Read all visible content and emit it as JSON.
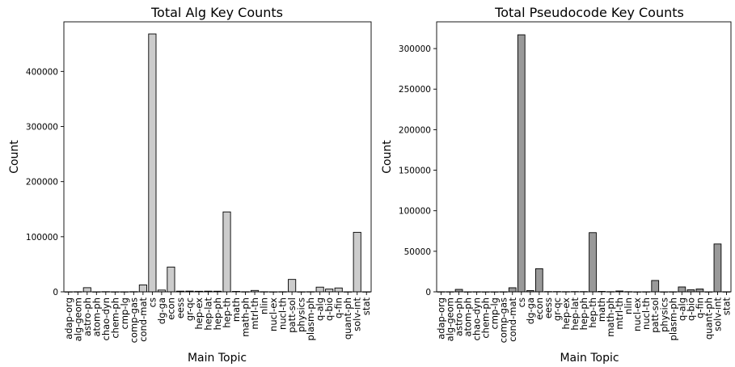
{
  "chart_data": [
    {
      "type": "bar",
      "title": "Total Alg Key Counts",
      "xlabel": "Main Topic",
      "ylabel": "Count",
      "bar_color": "#cccccc",
      "edge_color": "#000000",
      "ylim": [
        0,
        490000
      ],
      "yticks": [
        0,
        100000,
        200000,
        300000,
        400000
      ],
      "ytick_labels": [
        "0",
        "100000",
        "200000",
        "300000",
        "400000"
      ],
      "categories": [
        "adap-org",
        "alg-geom",
        "astro-ph",
        "atom-ph",
        "chao-dyn",
        "chem-ph",
        "cmp-lg",
        "comp-gas",
        "cond-mat",
        "cs",
        "dg-ga",
        "econ",
        "eess",
        "gr-qc",
        "hep-ex",
        "hep-lat",
        "hep-ph",
        "hep-th",
        "math",
        "math-ph",
        "mtrl-th",
        "nlin",
        "nucl-ex",
        "nucl-th",
        "patt-sol",
        "physics",
        "plasm-ph",
        "q-alg",
        "q-bio",
        "q-fin",
        "quant-ph",
        "solv-int",
        "stat"
      ],
      "values": [
        100,
        200,
        7500,
        100,
        300,
        100,
        100,
        300,
        12500,
        468000,
        3200,
        45000,
        1200,
        1300,
        1000,
        1200,
        1100,
        145000,
        700,
        200,
        2500,
        200,
        100,
        200,
        22500,
        100,
        200,
        8500,
        5000,
        7000,
        100,
        108000,
        100
      ]
    },
    {
      "type": "bar",
      "title": "Total Pseudocode Key Counts",
      "xlabel": "Main Topic",
      "ylabel": "Count",
      "bar_color": "#999999",
      "edge_color": "#000000",
      "ylim": [
        0,
        333000
      ],
      "yticks": [
        0,
        50000,
        100000,
        150000,
        200000,
        250000,
        300000
      ],
      "ytick_labels": [
        "0",
        "50000",
        "100000",
        "150000",
        "200000",
        "250000",
        "300000"
      ],
      "categories": [
        "adap-org",
        "alg-geom",
        "astro-ph",
        "atom-ph",
        "chao-dyn",
        "chem-ph",
        "cmp-lg",
        "comp-gas",
        "cond-mat",
        "cs",
        "dg-ga",
        "econ",
        "eess",
        "gr-qc",
        "hep-ex",
        "hep-lat",
        "hep-ph",
        "hep-th",
        "math",
        "math-ph",
        "mtrl-th",
        "nlin",
        "nucl-ex",
        "nucl-th",
        "patt-sol",
        "physics",
        "plasm-ph",
        "q-alg",
        "q-bio",
        "q-fin",
        "quant-ph",
        "solv-int",
        "stat"
      ],
      "values": [
        100,
        100,
        3000,
        50,
        100,
        50,
        50,
        100,
        5000,
        317000,
        1500,
        28500,
        300,
        300,
        200,
        300,
        300,
        73000,
        500,
        200,
        1000,
        200,
        50,
        100,
        14000,
        50,
        100,
        6000,
        2500,
        3500,
        50,
        59000,
        100
      ]
    }
  ]
}
